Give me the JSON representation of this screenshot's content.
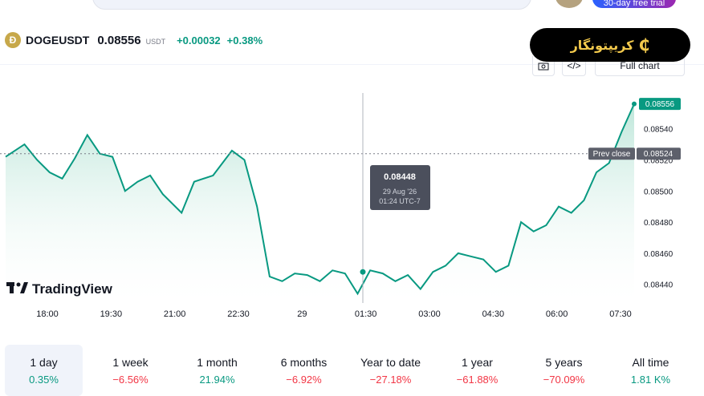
{
  "header": {
    "search_placeholder": "",
    "trial_label": "30-day free trial"
  },
  "symbol": {
    "name": "DOGEUSDT",
    "price": "0.08556",
    "unit": "USDT",
    "change_abs": "+0.00032",
    "change_pct": "+0.38%"
  },
  "brand": {
    "label": "کریپتونگار"
  },
  "toolbar": {
    "full_chart_label": "Full chart"
  },
  "chart_data": {
    "type": "area",
    "watermark": "TradingView",
    "x_ticks": [
      "18:00",
      "19:30",
      "21:00",
      "22:30",
      "29",
      "01:30",
      "03:00",
      "04:30",
      "06:00",
      "07:30"
    ],
    "y_ticks": [
      "0.08540",
      "0.08520",
      "0.08500",
      "0.08480",
      "0.08460",
      "0.08440"
    ],
    "ylim": [
      0.08428,
      0.08562
    ],
    "last_price_label": "0.08556",
    "prev_close_label": "Prev close",
    "prev_close_value": "0.08524",
    "prev_close": 0.08524,
    "tooltip": {
      "price": "0.08448",
      "date": "29 Aug '26",
      "time": "01:24 UTC-7"
    },
    "x": [
      0,
      3,
      5,
      7,
      9,
      11,
      13,
      15,
      17,
      19,
      21,
      23,
      25,
      28,
      30,
      33,
      36,
      38,
      40,
      42,
      44,
      46,
      48,
      50,
      52,
      54,
      56,
      58,
      60,
      62,
      64,
      66,
      68,
      70,
      72,
      74,
      76,
      78,
      80,
      82,
      84,
      86,
      88,
      90,
      92,
      94,
      96,
      98,
      100
    ],
    "values": [
      0.08522,
      0.0853,
      0.0852,
      0.08512,
      0.08508,
      0.08521,
      0.08536,
      0.08524,
      0.08522,
      0.085,
      0.08506,
      0.0851,
      0.08498,
      0.08486,
      0.08506,
      0.0851,
      0.08526,
      0.0852,
      0.0849,
      0.08445,
      0.08442,
      0.08447,
      0.08446,
      0.08442,
      0.08449,
      0.08447,
      0.08434,
      0.08449,
      0.08447,
      0.08442,
      0.08446,
      0.08437,
      0.08448,
      0.08452,
      0.0846,
      0.08458,
      0.08456,
      0.08448,
      0.08452,
      0.0848,
      0.08474,
      0.08478,
      0.0849,
      0.08486,
      0.08494,
      0.08512,
      0.08518,
      0.08538,
      0.08556
    ]
  },
  "periods": [
    {
      "label": "1 day",
      "value": "0.35%",
      "tone": "pos",
      "active": true
    },
    {
      "label": "1 week",
      "value": "−6.56%",
      "tone": "neg",
      "active": false
    },
    {
      "label": "1 month",
      "value": "21.94%",
      "tone": "pos",
      "active": false
    },
    {
      "label": "6 months",
      "value": "−6.92%",
      "tone": "neg",
      "active": false
    },
    {
      "label": "Year to date",
      "value": "−27.18%",
      "tone": "neg",
      "active": false
    },
    {
      "label": "1 year",
      "value": "−61.88%",
      "tone": "neg",
      "active": false
    },
    {
      "label": "5 years",
      "value": "−70.09%",
      "tone": "neg",
      "active": false
    },
    {
      "label": "All time",
      "value": "1.81 K%",
      "tone": "pos",
      "active": false
    }
  ],
  "colors": {
    "line": "#089981",
    "fill_top": "#b7e4d6",
    "negative": "#f23645",
    "positive": "#089981"
  }
}
